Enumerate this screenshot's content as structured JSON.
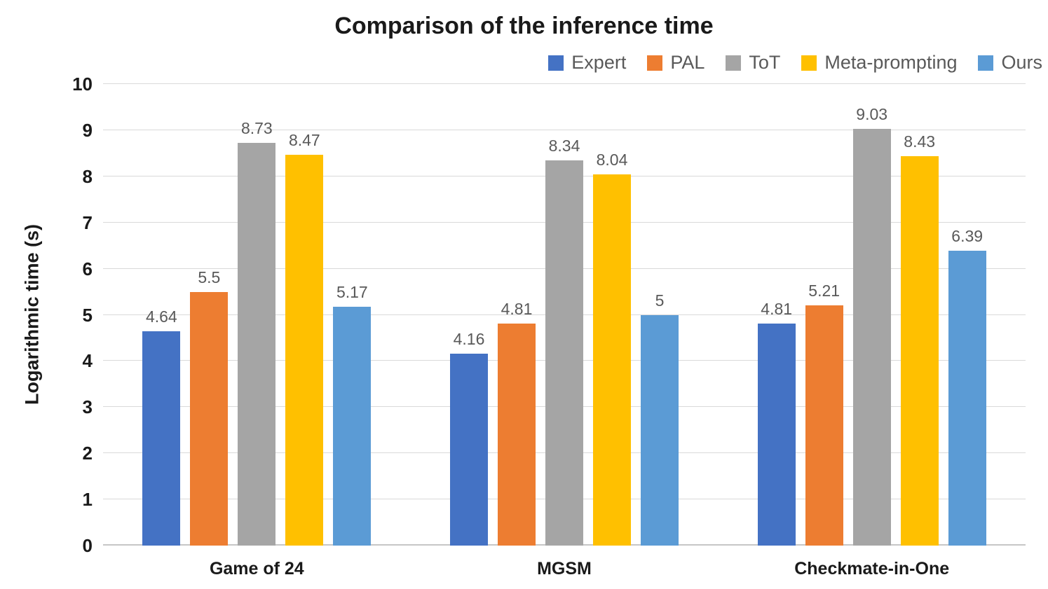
{
  "chart_data": {
    "type": "bar",
    "title": "Comparison of the inference time",
    "xlabel": "",
    "ylabel": "Logarithmic time (s)",
    "ylim": [
      0,
      10
    ],
    "ytick_step": 1,
    "grid": true,
    "legend_position": "top-right",
    "background_color": "#ffffff",
    "gridline_color": "#d9d9d9",
    "label_color": "#595959",
    "axis_text_color": "#1a1a1a",
    "categories": [
      "Game of 24",
      "MGSM",
      "Checkmate-in-One"
    ],
    "series": [
      {
        "name": "Expert",
        "color": "#4472C4",
        "values": [
          4.64,
          4.16,
          4.81
        ]
      },
      {
        "name": "PAL",
        "color": "#ED7D31",
        "values": [
          5.5,
          4.81,
          5.21
        ]
      },
      {
        "name": "ToT",
        "color": "#A5A5A5",
        "values": [
          8.73,
          8.34,
          9.03
        ]
      },
      {
        "name": "Meta-prompting",
        "color": "#FFC000",
        "values": [
          8.47,
          8.04,
          8.43
        ]
      },
      {
        "name": "Ours",
        "color": "#5B9BD5",
        "values": [
          5.17,
          5,
          6.39
        ]
      }
    ]
  }
}
